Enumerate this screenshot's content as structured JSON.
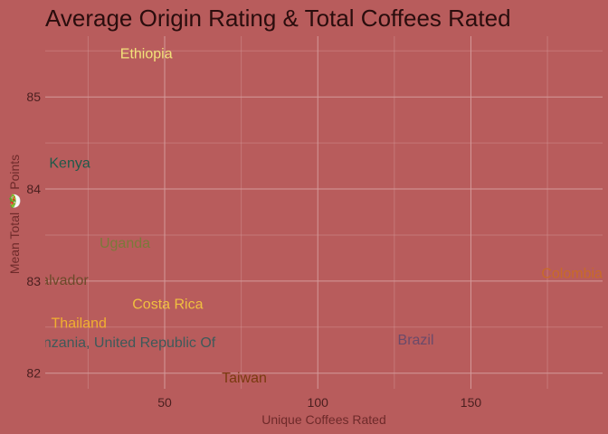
{
  "chart_data": {
    "type": "scatter",
    "title": "Average Origin Rating & Total Coffees Rated",
    "xlabel": "Unique Coffees Rated",
    "ylabel": "Mean Total 🥗 Points",
    "xlim": [
      11,
      193
    ],
    "ylim": [
      81.83,
      85.66
    ],
    "x_ticks": [
      50,
      100,
      150
    ],
    "x_tick_labels": [
      "50",
      "100",
      "150"
    ],
    "y_ticks": [
      82,
      83,
      84,
      85
    ],
    "y_tick_labels": [
      "82",
      "83",
      "84",
      "85"
    ],
    "grid": true,
    "legend": "none",
    "points": [
      {
        "label": "Ethiopia",
        "x": 44,
        "y": 85.48,
        "color": "#f2e27a"
      },
      {
        "label": "Kenya",
        "x": 19,
        "y": 84.29,
        "color": "#1f5a4a"
      },
      {
        "label": "Uganda",
        "x": 37,
        "y": 83.42,
        "color": "#7a7a3a"
      },
      {
        "label": "El Salvador",
        "x": 13,
        "y": 83.02,
        "color": "#6b4a2a"
      },
      {
        "label": "Colombia",
        "x": 183,
        "y": 83.09,
        "color": "#c86a28"
      },
      {
        "label": "Costa Rica",
        "x": 51,
        "y": 82.76,
        "color": "#f0c040"
      },
      {
        "label": "Thailand",
        "x": 22,
        "y": 82.55,
        "color": "#f0b030"
      },
      {
        "label": "Tanzania, United Republic Of",
        "x": 36,
        "y": 82.34,
        "color": "#3e5a5a"
      },
      {
        "label": "Brazil",
        "x": 132,
        "y": 82.37,
        "color": "#6a4a6a"
      },
      {
        "label": "Taiwan",
        "x": 76,
        "y": 81.96,
        "color": "#7a3a10"
      }
    ]
  }
}
